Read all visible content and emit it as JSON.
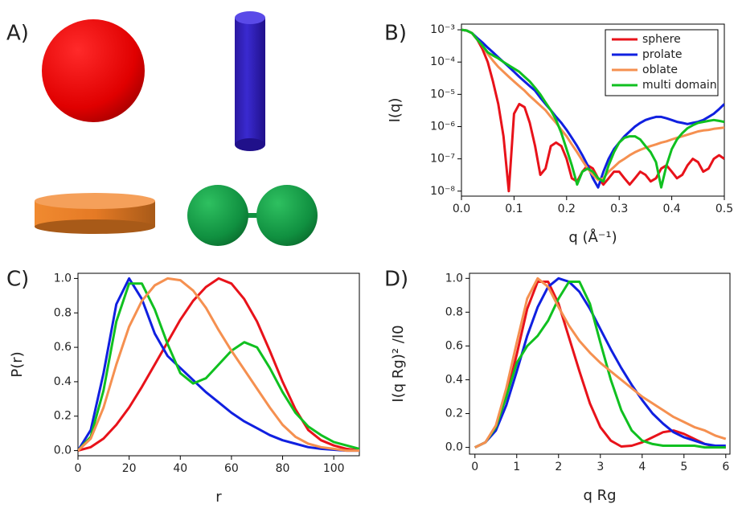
{
  "panel_labels": [
    "A)",
    "B)",
    "C)",
    "D)"
  ],
  "chart_data": [
    {
      "type": "line",
      "xlabel": "q (Å⁻¹)",
      "ylabel": "I(q)",
      "ylog": true,
      "legend": "top-right",
      "xlim": [
        0,
        0.5
      ],
      "xticks": [
        {
          "value": 0,
          "label": "0.0"
        },
        0.1,
        0.2,
        0.3,
        0.4,
        0.5
      ],
      "ylim": [
        7e-09,
        0.0015
      ],
      "yticks": [
        {
          "value": 1e-08,
          "label": "10⁻⁸"
        },
        {
          "value": 1e-07,
          "label": "10⁻⁷"
        },
        {
          "value": 1e-06,
          "label": "10⁻⁶"
        },
        {
          "value": 1e-05,
          "label": "10⁻⁵"
        },
        {
          "value": 0.0001,
          "label": "10⁻⁴"
        },
        {
          "value": 0.001,
          "label": "10⁻³"
        }
      ],
      "x": [
        0,
        0.01,
        0.02,
        0.03,
        0.04,
        0.05,
        0.06,
        0.07,
        0.08,
        0.09,
        0.1,
        0.11,
        0.12,
        0.13,
        0.14,
        0.15,
        0.16,
        0.17,
        0.18,
        0.19,
        0.2,
        0.21,
        0.22,
        0.23,
        0.24,
        0.25,
        0.26,
        0.27,
        0.28,
        0.29,
        0.3,
        0.31,
        0.32,
        0.33,
        0.34,
        0.35,
        0.36,
        0.37,
        0.38,
        0.39,
        0.4,
        0.41,
        0.42,
        0.43,
        0.44,
        0.45,
        0.46,
        0.47,
        0.48,
        0.49,
        0.5
      ],
      "series": [
        {
          "name": "sphere",
          "color": "#e8121a",
          "values": [
            0.001,
            0.00095,
            0.00079,
            0.0005,
            0.00025,
            0.0001,
            2.5e-05,
            5e-06,
            5e-07,
            1e-08,
            2.5e-06,
            5e-06,
            4e-06,
            1.3e-06,
            2.5e-07,
            3.2e-08,
            5e-08,
            2.5e-07,
            3.2e-07,
            2.5e-07,
            1e-07,
            2.5e-08,
            2e-08,
            4e-08,
            6.3e-08,
            5e-08,
            2.5e-08,
            1.6e-08,
            2.5e-08,
            4e-08,
            4e-08,
            2.5e-08,
            1.6e-08,
            2.5e-08,
            4e-08,
            3.2e-08,
            2e-08,
            2.5e-08,
            5e-08,
            6.3e-08,
            4e-08,
            2.5e-08,
            3.2e-08,
            6.3e-08,
            1e-07,
            7.9e-08,
            4e-08,
            5e-08,
            1e-07,
            1.3e-07,
            1e-07
          ]
        },
        {
          "name": "prolate",
          "color": "#1020e0",
          "values": [
            0.001,
            0.00095,
            0.00079,
            0.00056,
            0.0004,
            0.00028,
            0.0002,
            0.00014,
            0.0001,
            7.1e-05,
            5e-05,
            3.5e-05,
            2.5e-05,
            1.8e-05,
            1.3e-05,
            7.9e-06,
            5e-06,
            3.2e-06,
            2e-06,
            1.3e-06,
            7.9e-07,
            4.5e-07,
            2.5e-07,
            1.3e-07,
            6.3e-08,
            2.5e-08,
            1.3e-08,
            4e-08,
            1e-07,
            2e-07,
            3.2e-07,
            5e-07,
            7.1e-07,
            1e-06,
            1.3e-06,
            1.6e-06,
            1.8e-06,
            2e-06,
            2e-06,
            1.8e-06,
            1.6e-06,
            1.4e-06,
            1.3e-06,
            1.2e-06,
            1.3e-06,
            1.4e-06,
            1.6e-06,
            2e-06,
            2.5e-06,
            3.5e-06,
            5e-06
          ]
        },
        {
          "name": "oblate",
          "color": "#f59050",
          "values": [
            0.001,
            0.00095,
            0.00079,
            0.0005,
            0.00032,
            0.00018,
            0.00011,
            7.1e-05,
            5e-05,
            3.5e-05,
            2.5e-05,
            1.8e-05,
            1.3e-05,
            8.9e-06,
            6.3e-06,
            4.5e-06,
            3.2e-06,
            2e-06,
            1.3e-06,
            7.9e-07,
            5e-07,
            2.8e-07,
            1.6e-07,
            8.9e-08,
            5e-08,
            3.2e-08,
            2.2e-08,
            2.5e-08,
            4e-08,
            5.6e-08,
            7.9e-08,
            1e-07,
            1.3e-07,
            1.6e-07,
            1.9e-07,
            2.2e-07,
            2.5e-07,
            2.8e-07,
            3.2e-07,
            3.5e-07,
            4e-07,
            4.5e-07,
            5e-07,
            5.6e-07,
            6.3e-07,
            7.1e-07,
            7.6e-07,
            7.9e-07,
            8.5e-07,
            8.9e-07,
            9.3e-07
          ]
        },
        {
          "name": "multi domain",
          "color": "#10c020",
          "values": [
            0.001,
            0.00095,
            0.00079,
            0.0005,
            0.00032,
            0.0002,
            0.00016,
            0.00013,
            0.0001,
            7.9e-05,
            6.3e-05,
            5e-05,
            3.5e-05,
            2.5e-05,
            1.6e-05,
            1e-05,
            5.6e-06,
            3.2e-06,
            1.6e-06,
            6.3e-07,
            2e-07,
            6.3e-08,
            1.6e-08,
            4e-08,
            5e-08,
            4e-08,
            2.5e-08,
            2e-08,
            6.3e-08,
            1.6e-07,
            3.2e-07,
            4.5e-07,
            5e-07,
            5e-07,
            4e-07,
            2.5e-07,
            1.6e-07,
            7.9e-08,
            1.3e-08,
            6.3e-08,
            2e-07,
            4e-07,
            6.3e-07,
            8.9e-07,
            1.1e-06,
            1.3e-06,
            1.4e-06,
            1.5e-06,
            1.6e-06,
            1.5e-06,
            1.4e-06
          ]
        }
      ]
    },
    {
      "type": "line",
      "xlabel": "r",
      "ylabel": "P(r)",
      "xlim": [
        0,
        110
      ],
      "xticks": [
        0,
        20,
        40,
        60,
        80,
        100
      ],
      "ylim": [
        -0.03,
        1.03
      ],
      "yticks": [
        {
          "value": 0,
          "label": "0.0"
        },
        0.2,
        0.4,
        0.6,
        0.8,
        {
          "value": 1,
          "label": "1.0"
        }
      ],
      "x": [
        0,
        5,
        10,
        15,
        20,
        25,
        30,
        35,
        40,
        45,
        50,
        55,
        60,
        65,
        70,
        75,
        80,
        85,
        90,
        95,
        100,
        105,
        110
      ],
      "series": [
        {
          "color": "#e8121a",
          "values": [
            0,
            0.02,
            0.07,
            0.15,
            0.25,
            0.37,
            0.5,
            0.63,
            0.76,
            0.87,
            0.95,
            1,
            0.97,
            0.88,
            0.75,
            0.58,
            0.4,
            0.24,
            0.12,
            0.06,
            0.03,
            0.01,
            0
          ]
        },
        {
          "color": "#1020e0",
          "values": [
            0,
            0.12,
            0.45,
            0.85,
            1,
            0.88,
            0.68,
            0.55,
            0.48,
            0.41,
            0.34,
            0.28,
            0.22,
            0.17,
            0.13,
            0.09,
            0.06,
            0.04,
            0.02,
            0.01,
            0.005,
            0,
            0
          ]
        },
        {
          "color": "#10c020",
          "values": [
            0,
            0.08,
            0.35,
            0.75,
            0.97,
            0.97,
            0.82,
            0.62,
            0.45,
            0.39,
            0.42,
            0.5,
            0.58,
            0.63,
            0.6,
            0.48,
            0.34,
            0.22,
            0.14,
            0.09,
            0.05,
            0.03,
            0.01
          ]
        },
        {
          "color": "#f59050",
          "values": [
            0,
            0.07,
            0.25,
            0.5,
            0.72,
            0.87,
            0.96,
            1,
            0.99,
            0.93,
            0.83,
            0.7,
            0.58,
            0.47,
            0.36,
            0.25,
            0.15,
            0.08,
            0.04,
            0.02,
            0.01,
            0,
            0
          ]
        }
      ]
    },
    {
      "type": "line",
      "xlabel": "q Rg",
      "ylabel": "I(q Rg)² /I0",
      "xlim": [
        -0.13,
        6.1
      ],
      "xticks": [
        0,
        1,
        2,
        3,
        4,
        5,
        6
      ],
      "ylim": [
        -0.04,
        1.03
      ],
      "yticks": [
        {
          "value": 0,
          "label": "0.0"
        },
        0.2,
        0.4,
        0.6,
        0.8,
        {
          "value": 1,
          "label": "1.0"
        }
      ],
      "x": [
        0,
        0.25,
        0.5,
        0.75,
        1,
        1.25,
        1.5,
        1.75,
        2,
        2.25,
        2.5,
        2.75,
        3,
        3.25,
        3.5,
        3.75,
        4,
        4.25,
        4.5,
        4.75,
        5,
        5.25,
        5.5,
        5.75,
        6
      ],
      "series": [
        {
          "color": "#e8121a",
          "values": [
            0,
            0.03,
            0.12,
            0.3,
            0.55,
            0.82,
            0.98,
            0.98,
            0.85,
            0.65,
            0.45,
            0.26,
            0.12,
            0.04,
            0.005,
            0.01,
            0.03,
            0.06,
            0.09,
            0.1,
            0.08,
            0.05,
            0.02,
            0.005,
            0
          ]
        },
        {
          "color": "#1020e0",
          "values": [
            0,
            0.03,
            0.1,
            0.25,
            0.45,
            0.66,
            0.83,
            0.95,
            1,
            0.98,
            0.92,
            0.82,
            0.7,
            0.58,
            0.47,
            0.37,
            0.28,
            0.2,
            0.14,
            0.09,
            0.06,
            0.04,
            0.02,
            0.01,
            0.01
          ]
        },
        {
          "color": "#10c020",
          "values": [
            0,
            0.03,
            0.12,
            0.3,
            0.5,
            0.6,
            0.66,
            0.75,
            0.88,
            0.98,
            0.98,
            0.85,
            0.62,
            0.4,
            0.22,
            0.1,
            0.04,
            0.02,
            0.01,
            0.01,
            0.01,
            0.01,
            0,
            0,
            0
          ]
        },
        {
          "color": "#f59050",
          "values": [
            0,
            0.03,
            0.13,
            0.35,
            0.62,
            0.88,
            1,
            0.95,
            0.83,
            0.72,
            0.63,
            0.56,
            0.5,
            0.45,
            0.4,
            0.35,
            0.3,
            0.26,
            0.22,
            0.18,
            0.15,
            0.12,
            0.1,
            0.07,
            0.05
          ]
        }
      ]
    }
  ]
}
